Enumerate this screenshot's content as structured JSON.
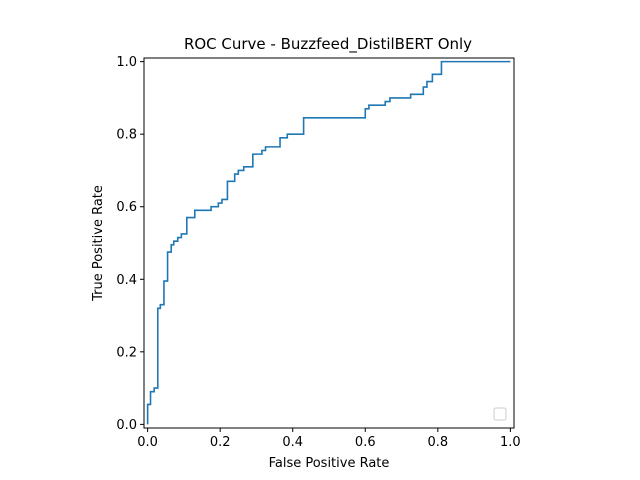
{
  "chart_data": {
    "type": "line",
    "title": "ROC Curve - Buzzfeed_DistilBERT Only",
    "xlabel": "False Positive Rate",
    "ylabel": "True Positive Rate",
    "xlim": [
      -0.01,
      1.01
    ],
    "ylim": [
      -0.01,
      1.01
    ],
    "xticks": [
      "0.0",
      "0.2",
      "0.4",
      "0.6",
      "0.8",
      "1.0"
    ],
    "yticks": [
      "0.0",
      "0.2",
      "0.4",
      "0.6",
      "0.8",
      "1.0"
    ],
    "grid": false,
    "legend": {
      "placement": "lower right",
      "entries": []
    },
    "line_color": "#1f77b4",
    "series": [
      {
        "drawstyle": "steps",
        "x": [
          0.0,
          0.0,
          0.008,
          0.008,
          0.018,
          0.018,
          0.028,
          0.028,
          0.035,
          0.035,
          0.045,
          0.045,
          0.055,
          0.055,
          0.065,
          0.065,
          0.072,
          0.072,
          0.083,
          0.083,
          0.093,
          0.093,
          0.108,
          0.108,
          0.13,
          0.13,
          0.175,
          0.175,
          0.195,
          0.195,
          0.205,
          0.205,
          0.22,
          0.22,
          0.24,
          0.24,
          0.25,
          0.25,
          0.265,
          0.265,
          0.29,
          0.29,
          0.315,
          0.315,
          0.325,
          0.325,
          0.365,
          0.365,
          0.385,
          0.385,
          0.397,
          0.397,
          0.43,
          0.43,
          0.6,
          0.6,
          0.61,
          0.61,
          0.655,
          0.655,
          0.668,
          0.668,
          0.725,
          0.725,
          0.76,
          0.76,
          0.77,
          0.77,
          0.785,
          0.785,
          0.81,
          0.81,
          0.865,
          0.865,
          1.0
        ],
        "y": [
          0.0,
          0.055,
          0.055,
          0.09,
          0.09,
          0.1,
          0.1,
          0.32,
          0.32,
          0.33,
          0.33,
          0.395,
          0.395,
          0.475,
          0.475,
          0.495,
          0.495,
          0.505,
          0.505,
          0.515,
          0.515,
          0.525,
          0.525,
          0.57,
          0.57,
          0.59,
          0.59,
          0.6,
          0.6,
          0.61,
          0.61,
          0.62,
          0.62,
          0.67,
          0.67,
          0.69,
          0.69,
          0.7,
          0.7,
          0.71,
          0.71,
          0.745,
          0.745,
          0.755,
          0.755,
          0.765,
          0.765,
          0.79,
          0.79,
          0.8,
          0.8,
          0.8,
          0.8,
          0.845,
          0.845,
          0.87,
          0.87,
          0.88,
          0.88,
          0.89,
          0.89,
          0.9,
          0.9,
          0.91,
          0.91,
          0.93,
          0.93,
          0.945,
          0.945,
          0.965,
          0.965,
          1.0,
          1.0,
          1.0,
          1.0
        ]
      }
    ]
  }
}
